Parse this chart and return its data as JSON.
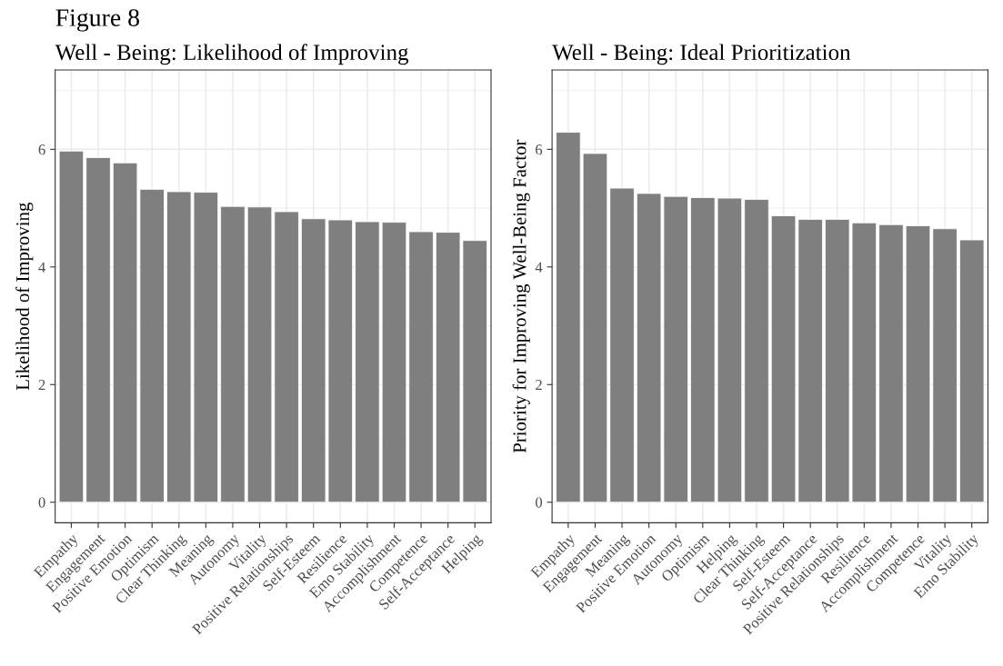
{
  "chart_data": [
    {
      "type": "bar",
      "title": "Figure 8",
      "subtitle": "Well - Being: Likelihood of Improving",
      "ylabel": "Likelihood of Improving",
      "categories": [
        "Empathy",
        "Engagement",
        "Positive Emotion",
        "Optimism",
        "Clear Thinking",
        "Meaning",
        "Autonomy",
        "Vitality",
        "Positive Relationships",
        "Self-Esteem",
        "Resilience",
        "Emo Stability",
        "Accomplishment",
        "Competence",
        "Self-Acceptance",
        "Helping"
      ],
      "values": [
        5.97,
        5.86,
        5.77,
        5.32,
        5.28,
        5.27,
        5.03,
        5.02,
        4.94,
        4.82,
        4.8,
        4.77,
        4.76,
        4.6,
        4.59,
        4.45
      ],
      "color": "#7f7f7f",
      "ylim": [
        -0.35,
        7.35
      ],
      "yticks": [
        0,
        2,
        4,
        6
      ],
      "grid": true
    },
    {
      "type": "bar",
      "title": "Well - Being: Ideal Prioritization",
      "ylabel": "Priority for Improving Well-Being Factor",
      "categories": [
        "Empathy",
        "Engagement",
        "Meaning",
        "Positive Emotion",
        "Autonomy",
        "Optimism",
        "Helping",
        "Clear Thinking",
        "Self-Esteem",
        "Self-Acceptance",
        "Positive Relationships",
        "Resilience",
        "Accomplishment",
        "Competence",
        "Vitality",
        "Emo Stability"
      ],
      "values": [
        6.29,
        5.93,
        5.34,
        5.25,
        5.2,
        5.18,
        5.17,
        5.15,
        4.87,
        4.81,
        4.81,
        4.75,
        4.72,
        4.7,
        4.65,
        4.46
      ],
      "color": "#7f7f7f",
      "ylim": [
        -0.35,
        7.35
      ],
      "yticks": [
        0,
        2,
        4,
        6
      ],
      "grid": true
    }
  ]
}
